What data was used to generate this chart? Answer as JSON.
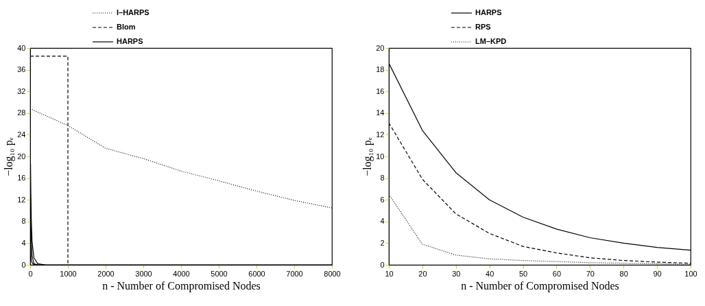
{
  "chart_data": [
    {
      "type": "line",
      "xlabel": "n - Number of Compromised Nodes",
      "ylabel": "−log₁₀ pₑ",
      "xlim": [
        0,
        8000
      ],
      "ylim": [
        0,
        40
      ],
      "xticks": [
        0,
        1000,
        2000,
        3000,
        4000,
        5000,
        6000,
        7000,
        8000
      ],
      "yticks": [
        0,
        4,
        8,
        12,
        16,
        20,
        24,
        28,
        32,
        36,
        40
      ],
      "legend": "top left",
      "series": [
        {
          "name": "I–HARPS",
          "color": "#000000",
          "line_style": "dotted",
          "x": [
            0,
            1000,
            2000,
            3000,
            4000,
            5000,
            6000,
            7000,
            8000
          ],
          "values": [
            28.8,
            25.7,
            21.5,
            19.6,
            17.3,
            15.5,
            13.6,
            11.9,
            10.5
          ]
        },
        {
          "name": "Blom",
          "color": "#000000",
          "line_style": "dashed",
          "x": [
            0,
            1000,
            1000
          ],
          "values": [
            38.5,
            38.5,
            0
          ]
        },
        {
          "name": "HARPS",
          "color": "#000000",
          "line_style": "solid",
          "x": [
            10,
            20,
            30,
            50,
            100,
            200,
            400,
            8000
          ],
          "values": [
            18.6,
            12.3,
            8.4,
            4.3,
            1.3,
            0.2,
            0,
            0
          ]
        },
        {
          "color": "#000000",
          "line_style": "solid",
          "x": [
            10,
            20,
            30,
            50,
            100,
            200,
            400
          ],
          "values": [
            13,
            7.8,
            4.7,
            1.7,
            0.2,
            0,
            0
          ]
        },
        {
          "color": "#000000",
          "line_style": "solid",
          "x": [
            10,
            20,
            30,
            50,
            100,
            200
          ],
          "values": [
            6.5,
            1.9,
            0.9,
            0.4,
            0,
            0
          ]
        }
      ]
    },
    {
      "type": "line",
      "xlabel": "n - Number of Compromised Nodes",
      "ylabel": "−log₁₀ pₑ",
      "xlim": [
        10,
        100
      ],
      "ylim": [
        0,
        20
      ],
      "xticks": [
        10,
        20,
        30,
        40,
        50,
        60,
        70,
        80,
        90,
        100
      ],
      "yticks": [
        0,
        2,
        4,
        6,
        8,
        10,
        12,
        14,
        16,
        18,
        20
      ],
      "legend": "top left",
      "series": [
        {
          "name": "HARPS",
          "color": "#000000",
          "line_style": "solid",
          "x": [
            10,
            20,
            30,
            40,
            50,
            60,
            70,
            80,
            90,
            100
          ],
          "values": [
            18.6,
            12.4,
            8.5,
            6.0,
            4.4,
            3.3,
            2.5,
            2.0,
            1.6,
            1.35
          ]
        },
        {
          "name": "RPS",
          "color": "#000000",
          "line_style": "dashed",
          "x": [
            10,
            20,
            30,
            40,
            50,
            60,
            70,
            80,
            90,
            100
          ],
          "values": [
            13.1,
            7.9,
            4.7,
            2.9,
            1.7,
            1.1,
            0.65,
            0.4,
            0.25,
            0.15
          ]
        },
        {
          "name": "LM–KPD",
          "color": "#000000",
          "line_style": "dotted",
          "x": [
            10,
            20,
            30,
            40,
            50,
            60,
            70,
            80,
            90,
            100
          ],
          "values": [
            6.5,
            1.9,
            0.9,
            0.55,
            0.4,
            0.3,
            0.2,
            0.15,
            0.1,
            0.05
          ]
        }
      ]
    }
  ]
}
